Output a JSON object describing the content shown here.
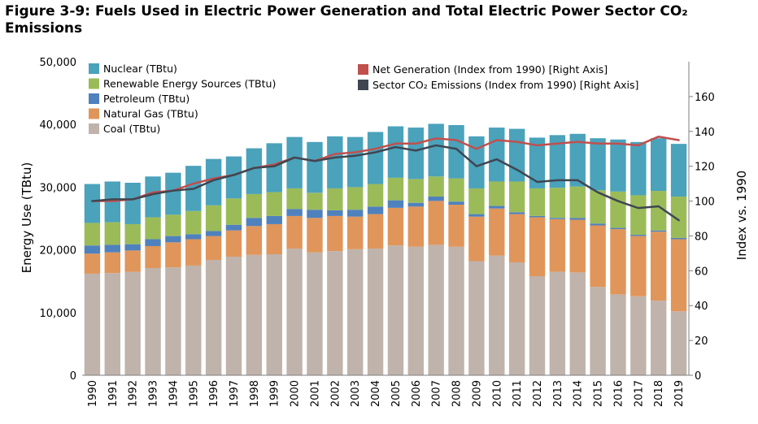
{
  "figure_title": "Figure 3-9:  Fuels Used in Electric Power Generation and Total Electric Power Sector CO₂ Emissions",
  "chart_data": {
    "type": "bar",
    "stacked": true,
    "categories": [
      "1990",
      "1991",
      "1992",
      "1993",
      "1994",
      "1995",
      "1996",
      "1997",
      "1998",
      "1999",
      "2000",
      "2001",
      "2002",
      "2003",
      "2004",
      "2005",
      "2006",
      "2007",
      "2008",
      "2009",
      "2010",
      "2011",
      "2012",
      "2013",
      "2014",
      "2015",
      "2016",
      "2017",
      "2018",
      "2019"
    ],
    "ylabel": "Energy Use (TBtu)",
    "ylim": [
      0,
      50000
    ],
    "yticks": [
      0,
      10000,
      20000,
      30000,
      40000,
      50000
    ],
    "ytick_labels": [
      "0",
      "10,000",
      "20,000",
      "30,000",
      "40,000",
      "50,000"
    ],
    "y2label": "Index vs. 1990",
    "y2lim": [
      0,
      180
    ],
    "y2ticks": [
      0,
      20,
      40,
      60,
      80,
      100,
      120,
      140,
      160
    ],
    "y2tick_labels": [
      "0",
      "20",
      "40",
      "60",
      "80",
      "100",
      "120",
      "140",
      "160"
    ],
    "grid": false,
    "legend_position": "top",
    "series": [
      {
        "name": "Coal (TBtu)",
        "color": "#bfb3ab",
        "values": [
          16200,
          16300,
          16500,
          17100,
          17200,
          17500,
          18400,
          18900,
          19200,
          19300,
          20200,
          19600,
          19800,
          20100,
          20200,
          20700,
          20500,
          20800,
          20500,
          18200,
          19100,
          18000,
          15800,
          16500,
          16400,
          14100,
          12900,
          12600,
          11900,
          10200
        ]
      },
      {
        "name": "Natural Gas (TBtu)",
        "color": "#e0955a",
        "values": [
          3200,
          3300,
          3400,
          3500,
          4000,
          4200,
          3800,
          4200,
          4600,
          4800,
          5200,
          5500,
          5600,
          5200,
          5500,
          6000,
          6400,
          7000,
          6700,
          7100,
          7500,
          7700,
          9400,
          8400,
          8400,
          9800,
          10400,
          9600,
          11000,
          11500
        ]
      },
      {
        "name": "Petroleum (TBtu)",
        "color": "#4f81bd",
        "values": [
          1300,
          1200,
          1000,
          1100,
          1000,
          800,
          800,
          900,
          1300,
          1300,
          1100,
          1300,
          900,
          1100,
          1200,
          1200,
          600,
          700,
          500,
          400,
          400,
          300,
          200,
          200,
          300,
          300,
          200,
          200,
          200,
          200
        ]
      },
      {
        "name": "Renewable Energy Sources (TBtu)",
        "color": "#9bbb59",
        "values": [
          3600,
          3600,
          3200,
          3500,
          3400,
          3700,
          4100,
          4200,
          3800,
          3800,
          3300,
          2700,
          3500,
          3600,
          3600,
          3600,
          3800,
          3200,
          3700,
          4100,
          3900,
          4900,
          4400,
          4800,
          5000,
          5300,
          5800,
          6300,
          6300,
          6600
        ]
      },
      {
        "name": "Nuclear (TBtu)",
        "color": "#4aa2bb",
        "values": [
          6200,
          6500,
          6600,
          6500,
          6700,
          7200,
          7400,
          6700,
          7300,
          7800,
          8200,
          8100,
          8300,
          8000,
          8300,
          8200,
          8200,
          8400,
          8500,
          8300,
          8600,
          8400,
          8100,
          8400,
          8400,
          8300,
          8300,
          8500,
          8400,
          8400
        ]
      }
    ],
    "lines": [
      {
        "name": "Net Generation (Index from 1990) [Right Axis]",
        "color": "#c0504d",
        "values": [
          100,
          100,
          101,
          105,
          106,
          110,
          113,
          115,
          119,
          121,
          125,
          123,
          127,
          128,
          130,
          133,
          133,
          136,
          135,
          130,
          135,
          134,
          132,
          133,
          134,
          133,
          133,
          132,
          137,
          135
        ]
      },
      {
        "name": "Sector CO₂ Emissions (Index from 1990) [Right Axis]",
        "color": "#3f4651",
        "values": [
          100,
          101,
          101,
          104,
          106,
          107,
          112,
          115,
          119,
          120,
          125,
          123,
          125,
          126,
          128,
          131,
          129,
          132,
          130,
          120,
          124,
          118,
          111,
          112,
          112,
          105,
          100,
          96,
          97,
          89
        ]
      }
    ]
  }
}
